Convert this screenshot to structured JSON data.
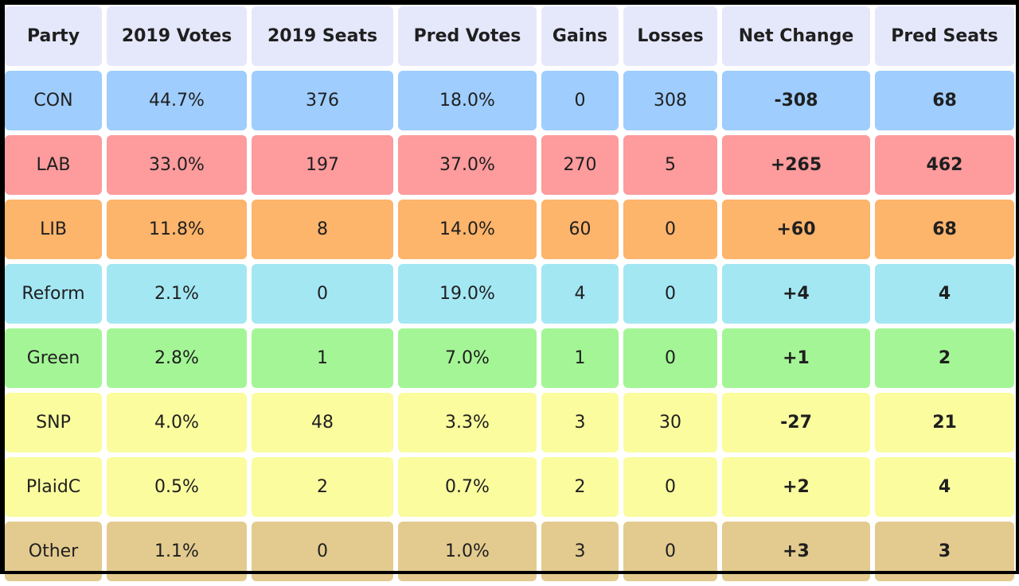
{
  "table": {
    "headers": [
      "Party",
      "2019 Votes",
      "2019 Seats",
      "Pred Votes",
      "Gains",
      "Losses",
      "Net Change",
      "Pred Seats"
    ],
    "rows": [
      {
        "party": "CON",
        "votes_2019": "44.7%",
        "seats_2019": "376",
        "pred_votes": "18.0%",
        "gains": "0",
        "losses": "308",
        "net_change": "-308",
        "pred_seats": "68",
        "color": "#9fcdfd"
      },
      {
        "party": "LAB",
        "votes_2019": "33.0%",
        "seats_2019": "197",
        "pred_votes": "37.0%",
        "gains": "270",
        "losses": "5",
        "net_change": "+265",
        "pred_seats": "462",
        "color": "#fd9b9d"
      },
      {
        "party": "LIB",
        "votes_2019": "11.8%",
        "seats_2019": "8",
        "pred_votes": "14.0%",
        "gains": "60",
        "losses": "0",
        "net_change": "+60",
        "pred_seats": "68",
        "color": "#fdb46b"
      },
      {
        "party": "Reform",
        "votes_2019": "2.1%",
        "seats_2019": "0",
        "pred_votes": "19.0%",
        "gains": "4",
        "losses": "0",
        "net_change": "+4",
        "pred_seats": "4",
        "color": "#a3e7f3"
      },
      {
        "party": "Green",
        "votes_2019": "2.8%",
        "seats_2019": "1",
        "pred_votes": "7.0%",
        "gains": "1",
        "losses": "0",
        "net_change": "+1",
        "pred_seats": "2",
        "color": "#a4f596"
      },
      {
        "party": "SNP",
        "votes_2019": "4.0%",
        "seats_2019": "48",
        "pred_votes": "3.3%",
        "gains": "3",
        "losses": "30",
        "net_change": "-27",
        "pred_seats": "21",
        "color": "#fafc9e"
      },
      {
        "party": "PlaidC",
        "votes_2019": "0.5%",
        "seats_2019": "2",
        "pred_votes": "0.7%",
        "gains": "2",
        "losses": "0",
        "net_change": "+2",
        "pred_seats": "4",
        "color": "#fafc9e"
      },
      {
        "party": "Other",
        "votes_2019": "1.1%",
        "seats_2019": "0",
        "pred_votes": "1.0%",
        "gains": "3",
        "losses": "0",
        "net_change": "+3",
        "pred_seats": "3",
        "color": "#e3cb8f"
      }
    ]
  },
  "colors": {
    "header_bg": "#e5e7fb",
    "text": "#1f1f1f"
  }
}
